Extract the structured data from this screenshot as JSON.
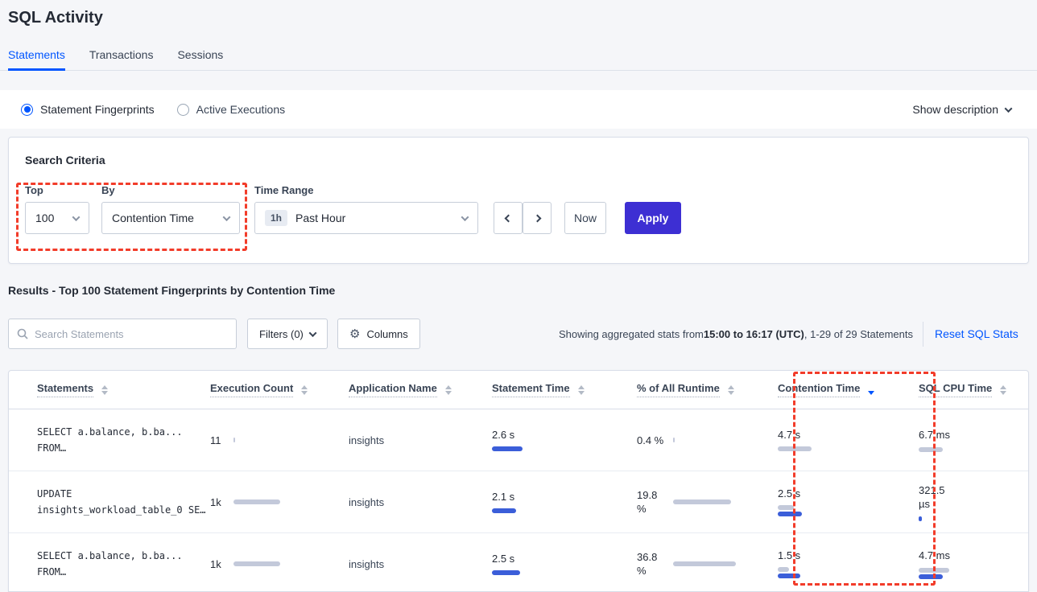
{
  "app": {
    "title": "SQL Activity"
  },
  "tabs": {
    "statements": "Statements",
    "transactions": "Transactions",
    "sessions": "Sessions"
  },
  "toggle": {
    "fingerprints": "Statement Fingerprints",
    "active_exec": "Active Executions",
    "show_description": "Show description"
  },
  "criteria": {
    "title": "Search Criteria",
    "top_label": "Top",
    "top_value": "100",
    "by_label": "By",
    "by_value": "Contention Time",
    "time_label": "Time Range",
    "time_badge": "1h",
    "time_value": "Past Hour",
    "now": "Now",
    "apply": "Apply"
  },
  "results": {
    "heading": "Results - Top 100 Statement Fingerprints by Contention Time",
    "search_placeholder": "Search Statements",
    "filters": "Filters (0)",
    "columns": "Columns",
    "gear_glyph": "⚙",
    "stats_prefix": "Showing aggregated stats from ",
    "stats_bold": "15:00 to 16:17 (UTC)",
    "stats_suffix": ", 1-29 of 29 Statements",
    "reset": "Reset SQL Stats"
  },
  "table": {
    "headers": [
      "Statements",
      "Execution Count",
      "Application Name",
      "Statement Time",
      "% of All Runtime",
      "Contention Time",
      "SQL CPU Time"
    ],
    "sort": {
      "column": "Contention Time",
      "direction": "desc"
    },
    "rows": [
      {
        "stmt1": "SELECT a.balance, b.ba...",
        "stmt2": "FROM…",
        "exec": "11",
        "app": "insights",
        "stmt_time": "2.6 s",
        "runtime": "0.4 %",
        "contention": "4.7 s",
        "cpu": "6.7 ms",
        "bars": {
          "exec": 2,
          "stmt": 38,
          "runtime": 2,
          "cont_gray": 42,
          "cont_blue": 0,
          "cpu_gray": 30,
          "cpu_blue": 0
        }
      },
      {
        "stmt1": "UPDATE",
        "stmt2": "insights_workload_table_0 SE…",
        "exec": "1k",
        "app": "insights",
        "stmt_time": "2.1 s",
        "runtime": "19.8 %",
        "contention": "2.5 s",
        "cpu": "321.5 µs",
        "bars": {
          "exec": 58,
          "stmt": 30,
          "runtime": 72,
          "cont_gray": 20,
          "cont_blue": 30,
          "cpu_gray": 0,
          "cpu_blue": 4
        }
      },
      {
        "stmt1": "SELECT a.balance, b.ba...",
        "stmt2": "FROM…",
        "exec": "1k",
        "app": "insights",
        "stmt_time": "2.5 s",
        "runtime": "36.8 %",
        "contention": "1.5 s",
        "cpu": "4.7 ms",
        "bars": {
          "exec": 58,
          "stmt": 35,
          "runtime": 78,
          "cont_gray": 14,
          "cont_blue": 28,
          "cpu_gray": 38,
          "cpu_blue": 30
        }
      }
    ]
  },
  "colors": {
    "accent_blue": "#0055ff",
    "apply_button": "#3d2fd3",
    "bar_blue": "#3b5ed9",
    "bar_gray": "#c3c9da",
    "annotation_red": "#f23c2a"
  }
}
